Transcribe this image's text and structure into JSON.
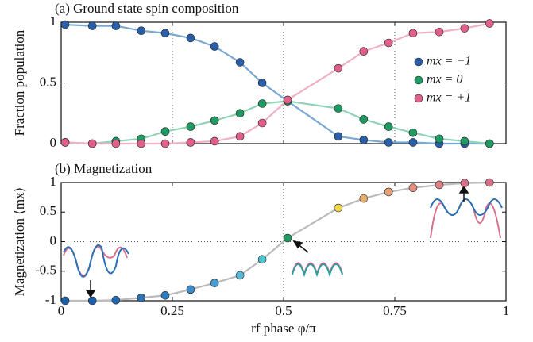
{
  "chart_data": [
    {
      "type": "scatter",
      "title": "(a) Ground state spin composition",
      "ylabel": "Fraction population",
      "x": [
        0.009,
        0.07,
        0.123,
        0.18,
        0.234,
        0.291,
        0.345,
        0.402,
        0.452,
        0.509,
        0.623,
        0.68,
        0.736,
        0.791,
        0.85,
        0.907,
        0.963
      ],
      "series": [
        {
          "name": "mx = −1",
          "color": "#2a5ea8",
          "fit_color": "#7aa9d6",
          "values": [
            0.98,
            0.97,
            0.97,
            0.93,
            0.91,
            0.87,
            0.8,
            0.67,
            0.5,
            0.35,
            0.06,
            0.03,
            0.01,
            0.01,
            0,
            0,
            0
          ]
        },
        {
          "name": "mx = 0",
          "color": "#1f9a62",
          "fit_color": "#8fd3b4",
          "values": [
            0.01,
            0,
            0.02,
            0.04,
            0.1,
            0.14,
            0.19,
            0.25,
            0.33,
            0.35,
            0.29,
            0.2,
            0.14,
            0.09,
            0.04,
            0.02,
            0
          ]
        },
        {
          "name": "mx = +1",
          "color": "#e0608a",
          "fit_color": "#efb0c8",
          "values": [
            0.01,
            0,
            0,
            0,
            0,
            0.01,
            0.02,
            0.06,
            0.17,
            0.36,
            0.62,
            0.76,
            0.83,
            0.91,
            0.92,
            0.95,
            0.99
          ]
        }
      ],
      "xlim": [
        0,
        1
      ],
      "ylim": [
        0,
        1
      ],
      "yticks": [
        0,
        0.5,
        1
      ],
      "legend": "right"
    },
    {
      "type": "scatter",
      "title": "(b) Magnetization",
      "ylabel": "Magnetization ⟨mx⟩",
      "xlabel": "rf phase φ/π",
      "x": [
        0.009,
        0.07,
        0.123,
        0.18,
        0.234,
        0.291,
        0.345,
        0.402,
        0.452,
        0.509,
        0.623,
        0.68,
        0.736,
        0.791,
        0.85,
        0.907,
        0.963
      ],
      "series": [
        {
          "color": "#bbbbbb",
          "values": [
            -1,
            -1,
            -0.99,
            -0.95,
            -0.91,
            -0.81,
            -0.7,
            -0.57,
            -0.3,
            0.06,
            0.57,
            0.73,
            0.84,
            0.91,
            0.96,
            0.99,
            1
          ]
        }
      ],
      "colors": [
        "#1f5fa8",
        "#1f5fa8",
        "#2466ad",
        "#2a70b4",
        "#2f7cbc",
        "#3a8ccc",
        "#45a0d6",
        "#58b8dc",
        "#4ec4cc",
        "#1f9a62",
        "#f0d84a",
        "#e8b070",
        "#e6a07a",
        "#e49080",
        "#e08088",
        "#d8708a",
        "#d8708a"
      ],
      "xlim": [
        0,
        1
      ],
      "ylim": [
        -1,
        1
      ],
      "xticks": [
        0,
        0.25,
        0.5,
        0.75,
        1
      ],
      "yticks": [
        -1,
        -0.5,
        0,
        0.5,
        1
      ],
      "hline": 0,
      "vline": 0.5
    }
  ]
}
